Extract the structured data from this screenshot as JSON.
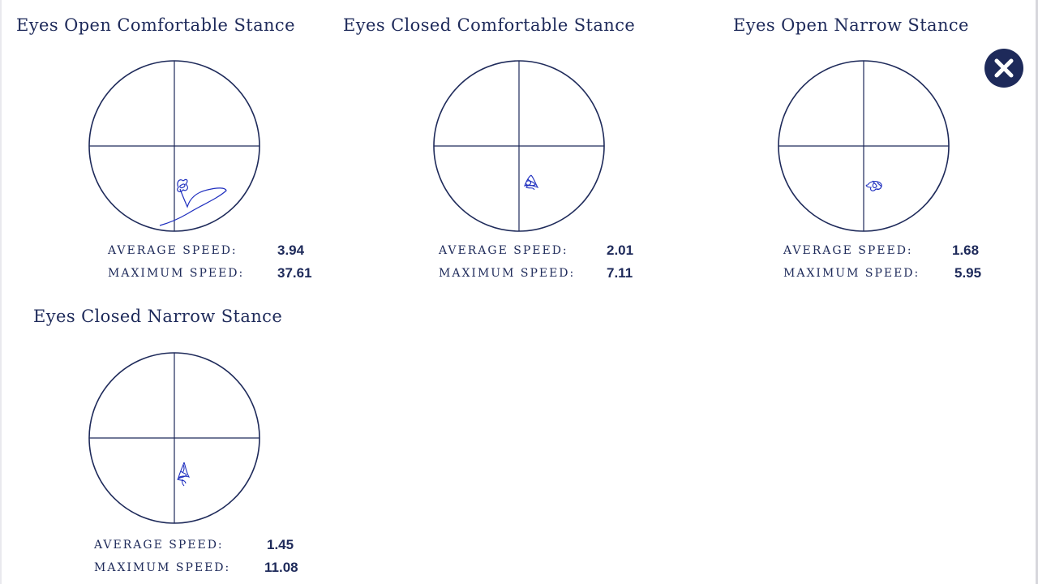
{
  "close_button": {
    "icon": "close-icon",
    "color": "#1e2a5a"
  },
  "accent_color": "#1e2a5a",
  "trace_color": "#1f2fbf",
  "stat_labels": {
    "average": "AVERAGE SPEED:",
    "maximum": "MAXIMUM SPEED:"
  },
  "panels": [
    {
      "title": "Eyes Open Comfortable Stance",
      "average_speed": "3.94",
      "maximum_speed": "37.61"
    },
    {
      "title": "Eyes Closed Comfortable Stance",
      "average_speed": "2.01",
      "maximum_speed": "7.11"
    },
    {
      "title": "Eyes Open Narrow Stance",
      "average_speed": "1.68",
      "maximum_speed": "5.95"
    },
    {
      "title": "Eyes Closed Narrow Stance",
      "average_speed": "1.45",
      "maximum_speed": "11.08"
    }
  ]
}
